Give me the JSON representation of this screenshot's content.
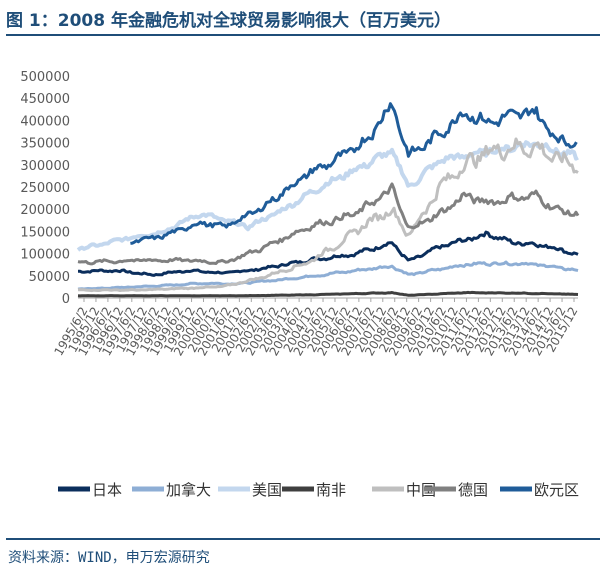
{
  "title": "图 1：2008 年金融危机对全球贸易影响很大（百万美元）",
  "source": "资料来源：WIND，申万宏源研究",
  "chart_data": {
    "type": "line",
    "ylim": [
      0,
      500000
    ],
    "yticks": [
      "500000",
      "450000",
      "400000",
      "350000",
      "300000",
      "250000",
      "200000",
      "150000",
      "100000",
      "50000",
      "0"
    ],
    "x_start": "1995-06",
    "x_end": "2016-04",
    "xticks": [
      "1995/6/2",
      "1995/12",
      "1996/6/2",
      "1996/12",
      "1997/6/2",
      "1997/12",
      "1998/6/2",
      "1998/12",
      "1999/6/2",
      "1999/12",
      "2000/6/2",
      "2000/12",
      "2001/6/2",
      "2001/12",
      "2002/6/2",
      "2002/12",
      "2003/6/2",
      "2003/12",
      "2004/6/2",
      "2004/12",
      "2005/6/2",
      "2005/12",
      "2006/6/2",
      "2006/12",
      "2007/6/2",
      "2007/12",
      "2008/6/2",
      "2008/12",
      "2009/6/2",
      "2009/12",
      "2010/6/2",
      "2010/12",
      "2011/6/2",
      "2011/12",
      "2012/6/2",
      "2012/12",
      "2013/6/2",
      "2013/12",
      "2014/6/2",
      "2014/12",
      "2015/6/2",
      "2015/12"
    ],
    "grid": false,
    "legend_position": "bottom",
    "series": [
      {
        "name": "日本",
        "color": "#0b2e5c",
        "width": 3,
        "noise": 0.06,
        "points": [
          [
            1995.42,
            60000
          ],
          [
            1997.0,
            62000
          ],
          [
            1998.5,
            52000
          ],
          [
            2000.0,
            62000
          ],
          [
            2001.5,
            56000
          ],
          [
            2003.0,
            65000
          ],
          [
            2005.0,
            85000
          ],
          [
            2007.0,
            100000
          ],
          [
            2008.5,
            125000
          ],
          [
            2009.2,
            82000
          ],
          [
            2010.5,
            115000
          ],
          [
            2011.5,
            130000
          ],
          [
            2012.5,
            145000
          ],
          [
            2013.5,
            125000
          ],
          [
            2014.5,
            122000
          ],
          [
            2015.5,
            110000
          ],
          [
            2016.2,
            98000
          ]
        ]
      },
      {
        "name": "加拿大",
        "color": "#8eaed5",
        "width": 3,
        "noise": 0.06,
        "points": [
          [
            1995.42,
            20000
          ],
          [
            1997.0,
            23000
          ],
          [
            1999.0,
            28000
          ],
          [
            2000.5,
            33000
          ],
          [
            2002.0,
            32000
          ],
          [
            2004.0,
            42000
          ],
          [
            2006.0,
            55000
          ],
          [
            2008.5,
            72000
          ],
          [
            2009.2,
            52000
          ],
          [
            2010.5,
            65000
          ],
          [
            2011.5,
            75000
          ],
          [
            2012.5,
            78000
          ],
          [
            2014.0,
            78000
          ],
          [
            2015.0,
            72000
          ],
          [
            2016.2,
            62000
          ]
        ]
      },
      {
        "name": "美国",
        "color": "#c3d7ee",
        "width": 4,
        "noise": 0.04,
        "points": [
          [
            1995.42,
            110000
          ],
          [
            1996.5,
            122000
          ],
          [
            1997.5,
            135000
          ],
          [
            1999.0,
            150000
          ],
          [
            2000.5,
            190000
          ],
          [
            2001.5,
            175000
          ],
          [
            2002.5,
            160000
          ],
          [
            2004.0,
            200000
          ],
          [
            2005.5,
            250000
          ],
          [
            2007.0,
            290000
          ],
          [
            2008.5,
            330000
          ],
          [
            2009.2,
            250000
          ],
          [
            2010.5,
            310000
          ],
          [
            2011.5,
            320000
          ],
          [
            2012.5,
            330000
          ],
          [
            2013.5,
            340000
          ],
          [
            2014.5,
            350000
          ],
          [
            2015.5,
            330000
          ],
          [
            2016.2,
            315000
          ]
        ]
      },
      {
        "name": "南非",
        "color": "#3f3f3f",
        "width": 3,
        "noise": 0.08,
        "points": [
          [
            1995.42,
            5000
          ],
          [
            1998.0,
            5000
          ],
          [
            2002.0,
            5000
          ],
          [
            2005.0,
            7000
          ],
          [
            2008.5,
            12000
          ],
          [
            2009.2,
            6000
          ],
          [
            2011.5,
            12000
          ],
          [
            2014.0,
            11000
          ],
          [
            2016.2,
            8000
          ]
        ]
      },
      {
        "name": "中国",
        "color": "#bfbfbf",
        "width": 3,
        "noise": 0.08,
        "points": [
          [
            1995.42,
            18000
          ],
          [
            1998.0,
            18000
          ],
          [
            2000.0,
            22000
          ],
          [
            2001.5,
            26000
          ],
          [
            2003.0,
            45000
          ],
          [
            2005.0,
            80000
          ],
          [
            2006.5,
            130000
          ],
          [
            2007.5,
            170000
          ],
          [
            2008.5,
            200000
          ],
          [
            2009.2,
            140000
          ],
          [
            2010.5,
            250000
          ],
          [
            2011.5,
            300000
          ],
          [
            2012.5,
            330000
          ],
          [
            2013.5,
            340000
          ],
          [
            2014.5,
            340000
          ],
          [
            2015.5,
            310000
          ],
          [
            2016.2,
            300000
          ]
        ]
      },
      {
        "name": "德国",
        "color": "#808080",
        "width": 3,
        "noise": 0.06,
        "points": [
          [
            1995.42,
            80000
          ],
          [
            1996.5,
            82000
          ],
          [
            1998.0,
            85000
          ],
          [
            2000.0,
            85000
          ],
          [
            2001.5,
            80000
          ],
          [
            2003.0,
            110000
          ],
          [
            2005.0,
            160000
          ],
          [
            2007.0,
            190000
          ],
          [
            2008.5,
            245000
          ],
          [
            2009.2,
            155000
          ],
          [
            2010.5,
            190000
          ],
          [
            2011.5,
            230000
          ],
          [
            2012.5,
            215000
          ],
          [
            2013.5,
            225000
          ],
          [
            2014.5,
            230000
          ],
          [
            2015.5,
            195000
          ],
          [
            2016.2,
            190000
          ]
        ]
      },
      {
        "name": "欧元区",
        "color": "#1f5c99",
        "width": 3,
        "noise": 0.05,
        "start": 1997.6,
        "points": [
          [
            1997.6,
            125000
          ],
          [
            1999.0,
            140000
          ],
          [
            2000.5,
            170000
          ],
          [
            2001.5,
            160000
          ],
          [
            2003.0,
            200000
          ],
          [
            2005.0,
            280000
          ],
          [
            2006.5,
            320000
          ],
          [
            2007.5,
            360000
          ],
          [
            2008.5,
            440000
          ],
          [
            2009.2,
            320000
          ],
          [
            2010.5,
            370000
          ],
          [
            2011.5,
            420000
          ],
          [
            2012.5,
            395000
          ],
          [
            2013.5,
            410000
          ],
          [
            2014.5,
            420000
          ],
          [
            2015.3,
            360000
          ],
          [
            2016.2,
            350000
          ]
        ]
      }
    ]
  }
}
